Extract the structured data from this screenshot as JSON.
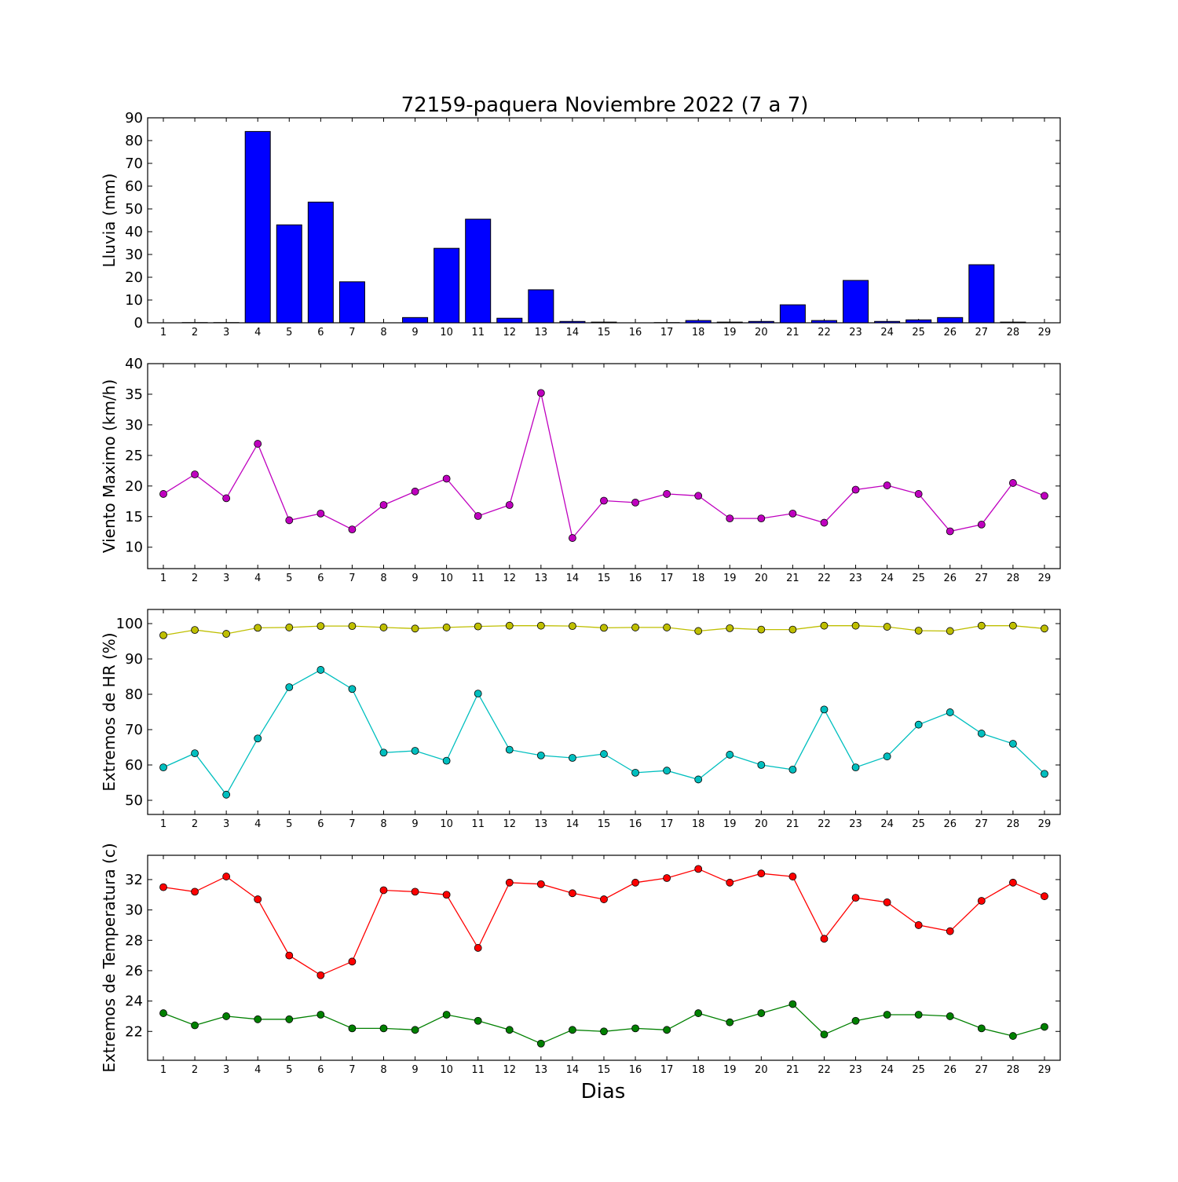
{
  "title": "72159-paquera Noviembre 2022  (7 a 7)",
  "xlabel": "Dias",
  "colors": {
    "rain": "#0000ff",
    "wind": "#bf00bf",
    "hr_max": "#bfbf00",
    "hr_min": "#00bfbf",
    "temp_max": "#ff0000",
    "temp_min": "#008000"
  },
  "chart_data": [
    {
      "type": "bar",
      "ylabel": "Lluvia (mm)",
      "ylim": [
        0,
        90
      ],
      "yticks": [
        0,
        10,
        20,
        30,
        40,
        50,
        60,
        70,
        80,
        90
      ],
      "categories": [
        "1",
        "2",
        "3",
        "4",
        "5",
        "6",
        "7",
        "8",
        "9",
        "10",
        "11",
        "12",
        "13",
        "14",
        "15",
        "16",
        "17",
        "18",
        "19",
        "20",
        "21",
        "22",
        "23",
        "24",
        "25",
        "26",
        "27",
        "28",
        "29"
      ],
      "values": [
        0,
        0.1,
        0.1,
        84,
        43,
        53,
        18,
        0,
        2.3,
        32.7,
        45.5,
        2,
        14.5,
        0.6,
        0.3,
        0,
        0.1,
        1,
        0.3,
        0.6,
        7.9,
        1,
        18.6,
        0.6,
        1.3,
        2.3,
        25.5,
        0.3,
        0
      ]
    },
    {
      "type": "line",
      "ylabel": "Viento Maximo (km/h)",
      "ylim": [
        6.5,
        40
      ],
      "yticks": [
        10,
        15,
        20,
        25,
        30,
        35,
        40
      ],
      "x": [
        1,
        2,
        3,
        4,
        5,
        6,
        7,
        8,
        9,
        10,
        11,
        12,
        13,
        14,
        15,
        16,
        17,
        18,
        19,
        20,
        21,
        22,
        23,
        24,
        25,
        26,
        27,
        28,
        29
      ],
      "series": [
        {
          "values": [
            18.7,
            21.9,
            18.0,
            26.9,
            14.4,
            15.5,
            12.9,
            16.9,
            19.1,
            21.2,
            15.1,
            16.9,
            35.2,
            11.5,
            17.6,
            17.3,
            18.7,
            18.4,
            14.7,
            14.7,
            15.5,
            14.0,
            19.4,
            20.1,
            18.7,
            12.6,
            13.7,
            20.5,
            18.4
          ]
        }
      ]
    },
    {
      "type": "line",
      "ylabel": "Extremos de HR (%)",
      "ylim": [
        46,
        104
      ],
      "yticks": [
        50,
        60,
        70,
        80,
        90,
        100
      ],
      "x": [
        1,
        2,
        3,
        4,
        5,
        6,
        7,
        8,
        9,
        10,
        11,
        12,
        13,
        14,
        15,
        16,
        17,
        18,
        19,
        20,
        21,
        22,
        23,
        24,
        25,
        26,
        27,
        28,
        29
      ],
      "series": [
        {
          "values": [
            96.7,
            98.2,
            97.1,
            98.8,
            98.9,
            99.3,
            99.3,
            98.9,
            98.6,
            98.9,
            99.2,
            99.4,
            99.4,
            99.3,
            98.8,
            98.9,
            98.9,
            97.9,
            98.7,
            98.3,
            98.3,
            99.4,
            99.4,
            99.1,
            98.0,
            97.9,
            99.4,
            99.4,
            98.6
          ]
        },
        {
          "values": [
            59.3,
            63.3,
            51.6,
            67.5,
            82.0,
            86.9,
            81.5,
            63.5,
            64.0,
            61.2,
            80.2,
            64.3,
            62.7,
            62.0,
            63.1,
            57.8,
            58.4,
            55.9,
            62.9,
            60.0,
            58.7,
            75.7,
            59.3,
            62.4,
            71.4,
            74.9,
            68.9,
            66.0,
            57.5
          ]
        }
      ]
    },
    {
      "type": "line",
      "ylabel": "Extremos de Temperatura (c)",
      "ylim": [
        20.1,
        33.6
      ],
      "yticks": [
        22,
        24,
        26,
        28,
        30,
        32
      ],
      "x": [
        1,
        2,
        3,
        4,
        5,
        6,
        7,
        8,
        9,
        10,
        11,
        12,
        13,
        14,
        15,
        16,
        17,
        18,
        19,
        20,
        21,
        22,
        23,
        24,
        25,
        26,
        27,
        28,
        29
      ],
      "series": [
        {
          "values": [
            31.5,
            31.2,
            32.2,
            30.7,
            27.0,
            25.7,
            26.6,
            31.3,
            31.2,
            31.0,
            27.5,
            31.8,
            31.7,
            31.1,
            30.7,
            31.8,
            32.1,
            32.7,
            31.8,
            32.4,
            32.2,
            28.1,
            30.8,
            30.5,
            29.0,
            28.6,
            30.6,
            31.8,
            30.9
          ]
        },
        {
          "values": [
            23.2,
            22.4,
            23.0,
            22.8,
            22.8,
            23.1,
            22.2,
            22.2,
            22.1,
            23.1,
            22.7,
            22.1,
            21.2,
            22.1,
            22.0,
            22.2,
            22.1,
            23.2,
            22.6,
            23.2,
            23.8,
            21.8,
            22.7,
            23.1,
            23.1,
            23.0,
            22.2,
            21.7,
            22.3
          ]
        }
      ]
    }
  ]
}
